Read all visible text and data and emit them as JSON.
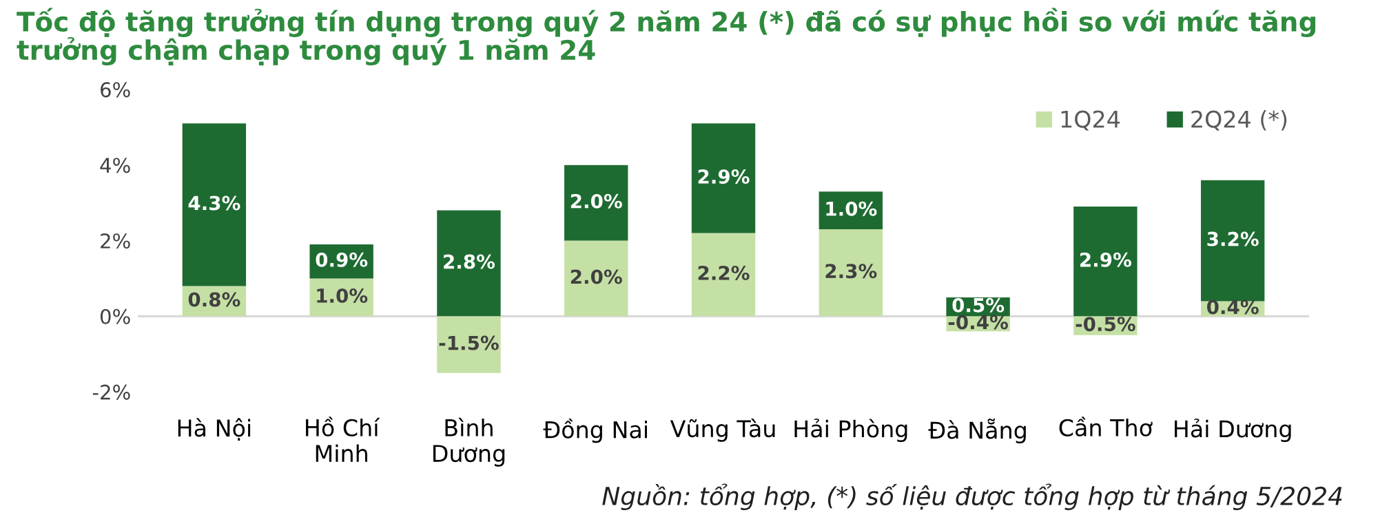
{
  "chart_data": {
    "type": "bar",
    "title": "Tốc độ tăng trưởng tín dụng trong quý 2 năm 24 (*) đã có sự phục hồi so với mức tăng trưởng chậm chạp trong quý 1 năm 24",
    "categories": [
      "Hà Nội",
      "Hồ Chí\nMinh",
      "Bình\nDương",
      "Đồng Nai",
      "Vũng Tàu",
      "Hải Phòng",
      "Đà Nẵng",
      "Cần Thơ",
      "Hải Dương"
    ],
    "stacked": true,
    "series": [
      {
        "name": "1Q24",
        "color": "#c5e0a5",
        "values": [
          0.8,
          1.0,
          -1.5,
          2.0,
          2.2,
          2.3,
          -0.4,
          -0.5,
          0.4
        ],
        "value_labels": [
          "0.8%",
          "1.0%",
          "-1.5%",
          "2.0%",
          "2.2%",
          "2.3%",
          "-0.4%",
          "-0.5%",
          "0.4%"
        ]
      },
      {
        "name": "2Q24 (*)",
        "color": "#1e6b32",
        "values": [
          4.3,
          0.9,
          2.8,
          2.0,
          2.9,
          1.0,
          0.5,
          2.9,
          3.2
        ],
        "value_labels": [
          "4.3%",
          "0.9%",
          "2.8%",
          "2.0%",
          "2.9%",
          "1.0%",
          "0.5%",
          "2.9%",
          "3.2%"
        ]
      }
    ],
    "ylim": [
      -2,
      6
    ],
    "ref_lines": [
      {
        "axis": "y",
        "value": 0,
        "color": "#d9d9d9"
      }
    ],
    "yticks": [
      {
        "value": -2,
        "label": "-2%"
      },
      {
        "value": 0,
        "label": "0%"
      },
      {
        "value": 2,
        "label": "2%"
      },
      {
        "value": 4,
        "label": "4%"
      },
      {
        "value": 6,
        "label": "6%"
      }
    ],
    "grid": false,
    "legend": "top right",
    "annotations": [
      "Nguồn: tổng hợp, (*) số liệu được tổng hợp từ tháng 5/2024"
    ]
  }
}
